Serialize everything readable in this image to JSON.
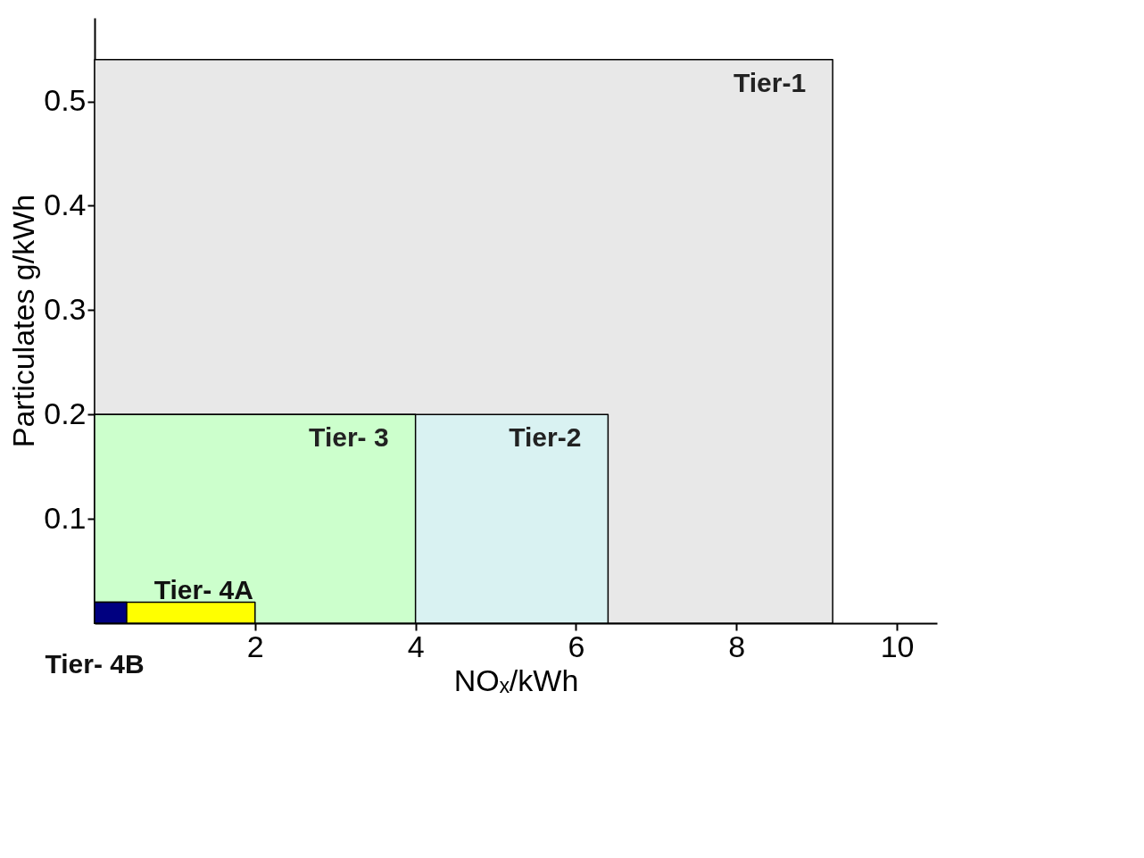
{
  "chart_data": {
    "type": "area",
    "xlabel": "NOₓ/kWh",
    "ylabel": "Particulates g/kWh",
    "series": [
      {
        "name": "Tier-1",
        "color": "#e8e8e8",
        "x": [
          0,
          9.2
        ],
        "values": [
          0.54,
          0.54
        ]
      },
      {
        "name": "Tier-2",
        "color": "#d9f2f2",
        "x": [
          0,
          6.4
        ],
        "values": [
          0.2,
          0.2
        ]
      },
      {
        "name": "Tier- 3",
        "color": "#ccffcc",
        "x": [
          0,
          4.0
        ],
        "values": [
          0.2,
          0.2
        ]
      },
      {
        "name": "Tier- 4A",
        "color": "#ffff00",
        "x": [
          0,
          2.0
        ],
        "values": [
          0.02,
          0.02
        ]
      },
      {
        "name": "Tier- 4B",
        "color": "#000080",
        "x": [
          0,
          0.4
        ],
        "values": [
          0.02,
          0.02
        ]
      }
    ],
    "xlim": [
      0,
      10.5
    ],
    "ylim": [
      0,
      0.58
    ],
    "xticks": [
      2,
      4,
      6,
      8,
      10
    ],
    "yticks": [
      0.1,
      0.2,
      0.3,
      0.4,
      0.5
    ]
  }
}
